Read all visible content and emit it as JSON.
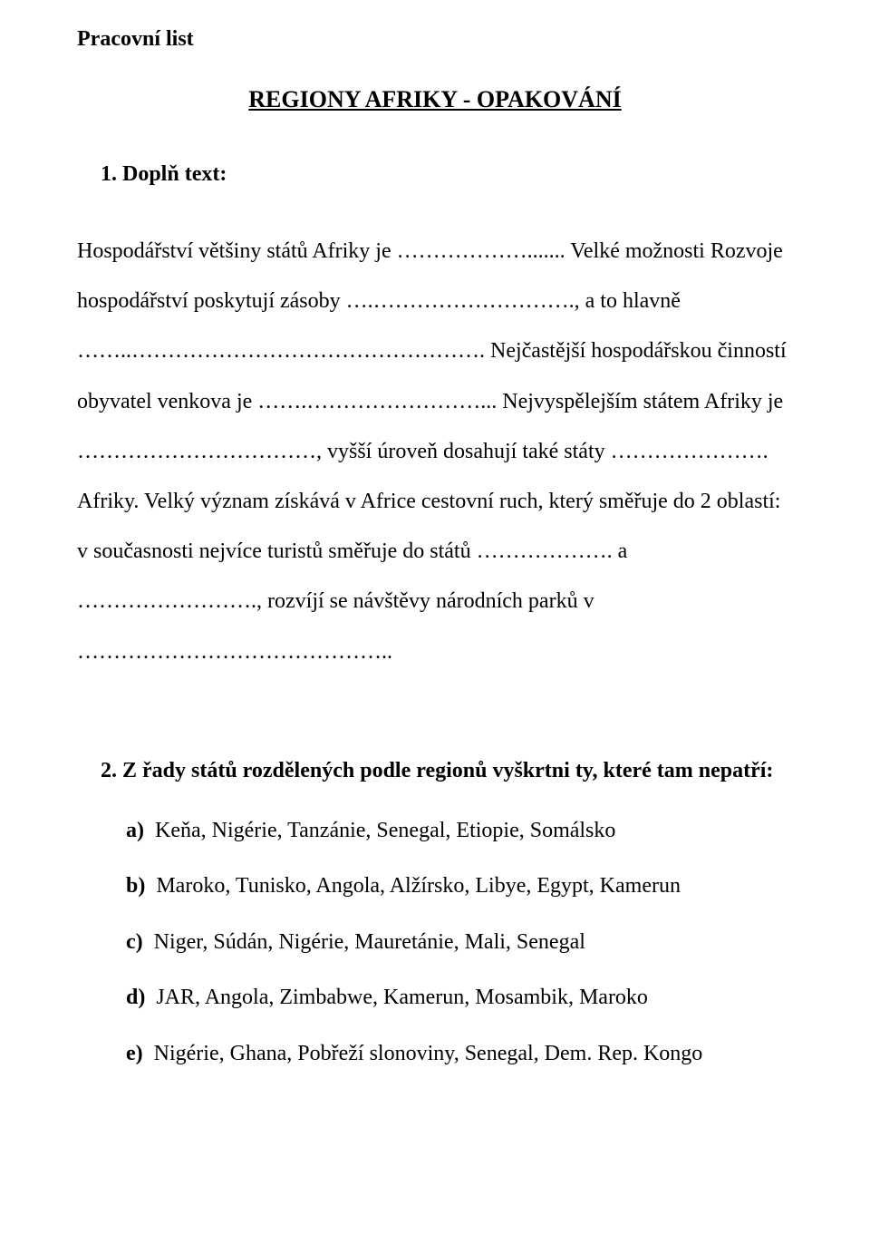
{
  "doc_label": "Pracovní list",
  "main_title": "REGIONY AFRIKY - OPAKOVÁNÍ",
  "q1": {
    "heading": "1. Doplň text:",
    "text": "Hospodářství většiny států Afriky je ………………....... Velké možnosti Rozvoje hospodářství poskytují zásoby ….………………………., a to hlavně ……..…………………………………………. Nejčastější hospodářskou činností obyvatel venkova je …….……………………... Nejvyspělejším státem Afriky je ……………………………, vyšší úroveň dosahují také  státy …………………. Afriky. Velký význam získává v Africe cestovní ruch, který směřuje do 2 oblastí: v současnosti nejvíce turistů směřuje do států ………………. a ……………………., rozvíjí se návštěvy národních parků v …………………………………….."
  },
  "q2": {
    "heading": "2. Z řady států rozdělených podle regionů vyškrtni ty, které tam nepatří:",
    "options": [
      {
        "letter": "a)",
        "text": "Keňa, Nigérie, Tanzánie, Senegal, Etiopie, Somálsko"
      },
      {
        "letter": "b)",
        "text": "Maroko, Tunisko, Angola, Alžírsko, Libye, Egypt, Kamerun"
      },
      {
        "letter": "c)",
        "text": "Niger, Súdán, Nigérie, Mauretánie, Mali, Senegal"
      },
      {
        "letter": "d)",
        "text": "JAR, Angola, Zimbabwe, Kamerun, Mosambik, Maroko"
      },
      {
        "letter": "e)",
        "text": "Nigérie, Ghana, Pobřeží slonoviny, Senegal, Dem. Rep. Kongo"
      }
    ]
  }
}
